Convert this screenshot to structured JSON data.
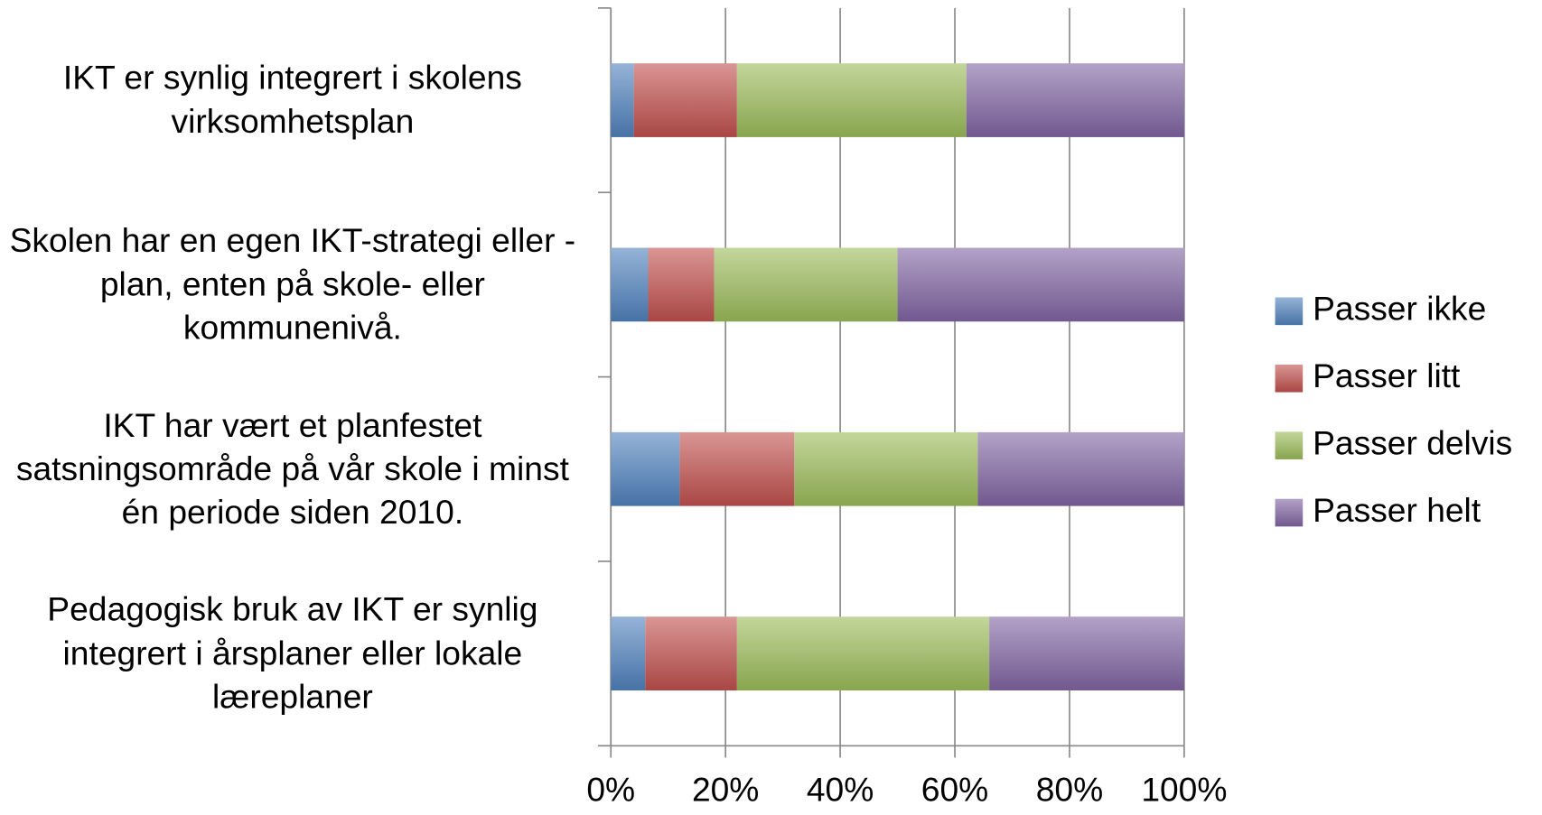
{
  "chart_data": {
    "type": "stacked-barh",
    "categories": [
      "IKT er synlig integrert i skolens virksomhetsplan",
      "Skolen har en egen IKT-strategi eller -plan, enten på skole- eller kommunenivå.",
      "IKT har vært et planfestet satsningsområde på vår skole i minst én periode siden 2010.",
      "Pedagogisk bruk av IKT er synlig integrert i årsplaner eller lokale læreplaner"
    ],
    "series": [
      {
        "name": "Passer ikke",
        "color": "#4f81bd",
        "values": [
          4,
          6.5,
          12,
          6
        ]
      },
      {
        "name": "Passer litt",
        "color": "#c0504d",
        "values": [
          18,
          11.5,
          20,
          16
        ]
      },
      {
        "name": "Passer delvis",
        "color": "#9bbb59",
        "values": [
          40,
          32,
          32,
          44
        ]
      },
      {
        "name": "Passer helt",
        "color": "#8064a2",
        "values": [
          38,
          50,
          36,
          34
        ]
      }
    ],
    "xlim": [
      0,
      100
    ],
    "xticks": [
      {
        "value": 0,
        "label": "0%"
      },
      {
        "value": 20,
        "label": "20%"
      },
      {
        "value": 40,
        "label": "40%"
      },
      {
        "value": 60,
        "label": "60%"
      },
      {
        "value": 80,
        "label": "80%"
      },
      {
        "value": 100,
        "label": "100%"
      }
    ],
    "grid": true,
    "legend": "right"
  }
}
